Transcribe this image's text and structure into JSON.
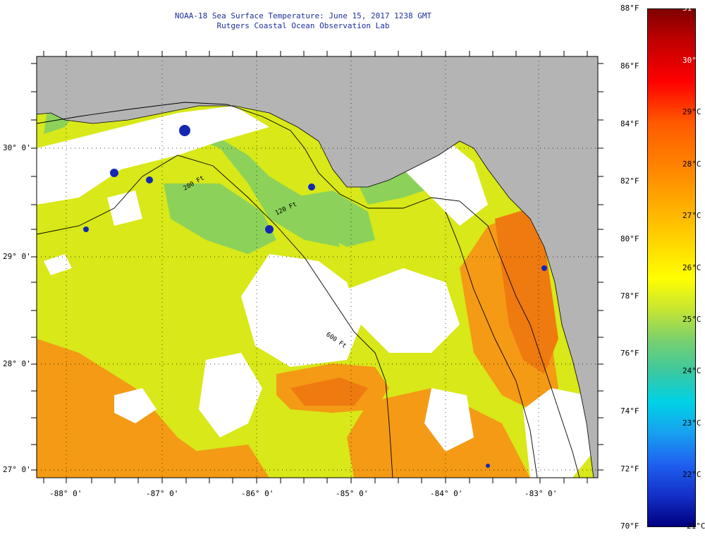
{
  "header": {
    "title": "NOAA-18 Sea Surface Temperature:  June 15, 2017 1238 GMT",
    "subtitle": "Rutgers Coastal Ocean Observation Lab"
  },
  "map": {
    "land_color": "#b4b4b4",
    "cloud_color": "#ffffff",
    "lon_labels": [
      "-88° 0'",
      "-87° 0'",
      "-86° 0'",
      "-85° 0'",
      "-84° 0'",
      "-83° 0'"
    ],
    "lat_labels": [
      "30° 0'",
      "29° 0'",
      "28° 0'",
      "27° 0'"
    ],
    "isobath_labels": [
      "200 Ft",
      "120 Ft",
      "600 Ft"
    ]
  },
  "colorbar": {
    "fahrenheit": [
      "88°F",
      "86°F",
      "84°F",
      "82°F",
      "80°F",
      "78°F",
      "76°F",
      "74°F",
      "72°F",
      "70°F"
    ],
    "celsius": [
      "31°C",
      "30°C",
      "29°C",
      "28°C",
      "27°C",
      "26°C",
      "25°C",
      "24°C",
      "23°C",
      "22°C",
      "21°C"
    ]
  }
}
